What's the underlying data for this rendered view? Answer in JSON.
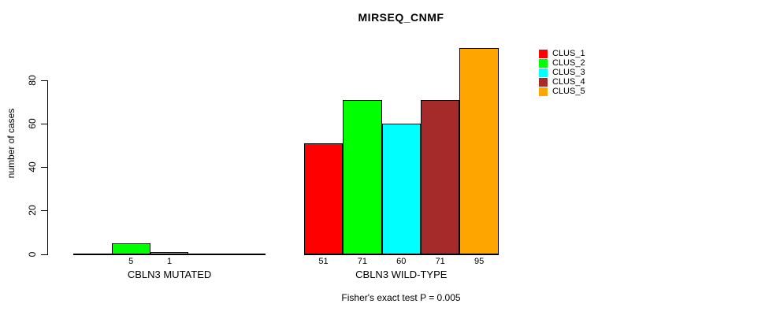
{
  "title": "MIRSEQ_CNMF",
  "ylabel": "number of cases",
  "footnote": "Fisher's exact test P = 0.005",
  "chart_data": {
    "type": "bar",
    "title": "MIRSEQ_CNMF",
    "xlabel": "",
    "ylabel": "number of cases",
    "ylim": [
      0,
      95
    ],
    "yticks": [
      0,
      20,
      40,
      60,
      80
    ],
    "grid": false,
    "legend_position": "top-right",
    "categories": [
      "CBLN3 MUTATED",
      "CBLN3 WILD-TYPE"
    ],
    "series": [
      {
        "name": "CLUS_1",
        "color": "#FF0000",
        "values": [
          0,
          51
        ]
      },
      {
        "name": "CLUS_2",
        "color": "#00FF00",
        "values": [
          5,
          71
        ]
      },
      {
        "name": "CLUS_3",
        "color": "#00FFFF",
        "values": [
          1,
          60
        ]
      },
      {
        "name": "CLUS_4",
        "color": "#A52A2A",
        "values": [
          0,
          71
        ]
      },
      {
        "name": "CLUS_5",
        "color": "#FFA500",
        "values": [
          0,
          95
        ]
      }
    ],
    "bar_value_labels": "shown below each nonzero bar",
    "annotation": "Fisher's exact test P = 0.005"
  }
}
